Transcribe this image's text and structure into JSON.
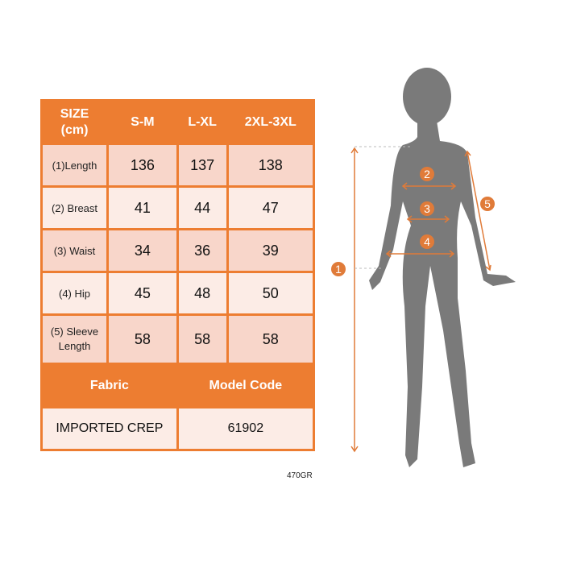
{
  "table": {
    "header": [
      "SIZE\n(cm)",
      "S-M",
      "L-XL",
      "2XL-3XL"
    ],
    "rows": [
      {
        "label": "(1)Length",
        "values": [
          "136",
          "137",
          "138"
        ]
      },
      {
        "label": "(2) Breast",
        "values": [
          "41",
          "44",
          "47"
        ]
      },
      {
        "label": "(3) Waist",
        "values": [
          "34",
          "36",
          "39"
        ]
      },
      {
        "label": "(4) Hip",
        "values": [
          "45",
          "48",
          "50"
        ]
      },
      {
        "label": "(5) Sleeve Length",
        "values": [
          "58",
          "58",
          "58"
        ]
      }
    ],
    "fabric_header": "Fabric",
    "model_code_header": "Model Code",
    "fabric": "IMPORTED CREP",
    "model_code": "61902"
  },
  "code_label": "470GR",
  "figure": {
    "markers": [
      "1",
      "2",
      "3",
      "4",
      "5"
    ]
  },
  "colors": {
    "accent": "#ed7d31",
    "row_dark": "#f8d6ca",
    "row_light": "#fcece6",
    "silhouette": "#7a7a7a"
  }
}
